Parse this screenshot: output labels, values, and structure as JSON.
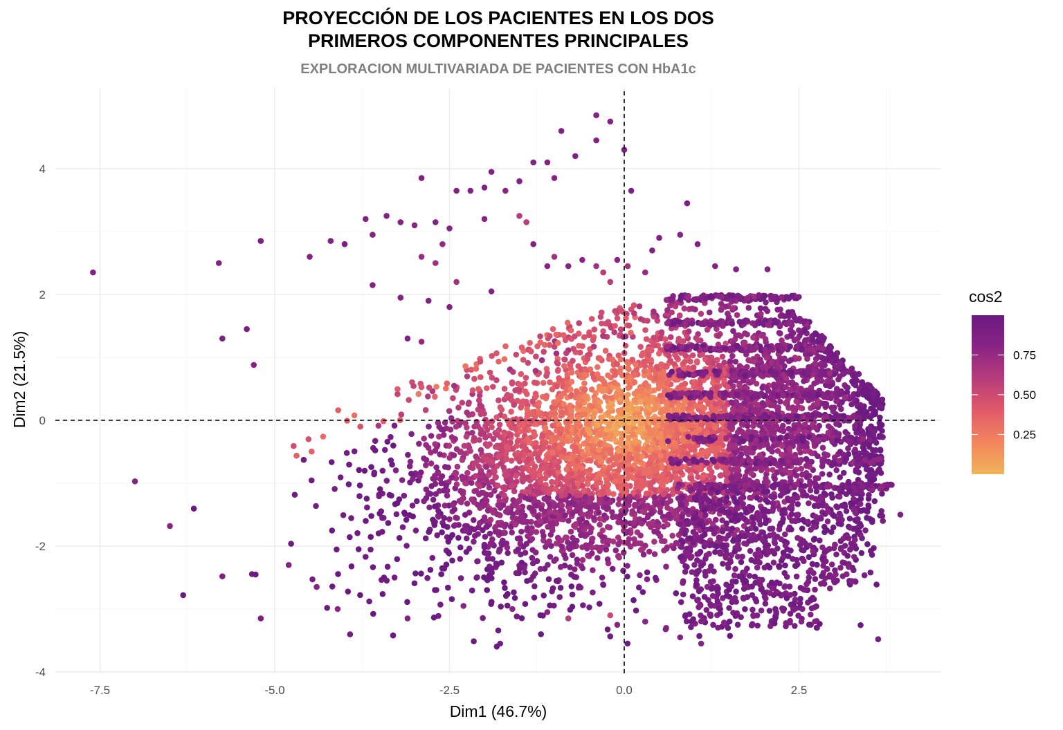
{
  "chart_data": {
    "type": "scatter",
    "title_lines": [
      "PROYECCIÓN DE LOS PACIENTES EN LOS DOS",
      "PRIMEROS COMPONENTES PRINCIPALES"
    ],
    "subtitle": "EXPLORACION MULTIVARIADA DE PACIENTES CON HbA1c",
    "xlabel": "Dim1 (46.7%)",
    "ylabel": "Dim2 (21.5%)",
    "xlim": [
      -8.1,
      4.6
    ],
    "ylim": [
      -4.0,
      5.1
    ],
    "x_ticks": [
      -7.5,
      -5.0,
      -2.5,
      0.0,
      2.5
    ],
    "x_tick_labels": [
      "-7.5",
      "-5.0",
      "-2.5",
      "0.0",
      "2.5"
    ],
    "y_ticks": [
      -4,
      -2,
      0,
      2,
      4
    ],
    "y_tick_labels": [
      "-4",
      "-2",
      "0",
      "2",
      "4"
    ],
    "reference_lines": {
      "x": 0,
      "y": 0,
      "style": "dashed"
    },
    "grid": true,
    "legend": {
      "title": "cos2",
      "placement": "right",
      "ticks": [
        0.25,
        0.5,
        0.75
      ],
      "tick_labels": [
        "0.25",
        "0.50",
        "0.75"
      ],
      "range": [
        0.0,
        1.0
      ]
    },
    "colormap": [
      "#f0b45a",
      "#f2855e",
      "#e15a69",
      "#b83c7b",
      "#8a2484",
      "#6b1a82"
    ],
    "outlier_points": [
      [
        -7.6,
        2.35,
        0.85
      ],
      [
        -5.8,
        2.5,
        0.85
      ],
      [
        -5.2,
        2.85,
        0.9
      ],
      [
        -5.75,
        1.3,
        0.9
      ],
      [
        -5.4,
        1.45,
        0.9
      ],
      [
        -5.3,
        0.88,
        0.85
      ],
      [
        -7.0,
        -0.97,
        0.8
      ],
      [
        -6.5,
        -1.68,
        0.8
      ],
      [
        -5.75,
        -2.48,
        0.9
      ],
      [
        -5.2,
        -3.15,
        0.9
      ],
      [
        -4.8,
        -2.3,
        0.85
      ],
      [
        -4.4,
        -2.65,
        0.8
      ],
      [
        -4.1,
        -3.0,
        0.8
      ],
      [
        -3.1,
        -3.15,
        0.85
      ],
      [
        -4.5,
        2.6,
        0.85
      ],
      [
        -4.2,
        2.85,
        0.85
      ],
      [
        -4.0,
        2.8,
        0.9
      ],
      [
        -3.7,
        3.2,
        0.85
      ],
      [
        -3.4,
        3.25,
        0.85
      ],
      [
        -3.6,
        2.95,
        0.85
      ],
      [
        -3.0,
        3.1,
        0.8
      ],
      [
        -3.2,
        3.15,
        0.85
      ],
      [
        -2.7,
        3.15,
        0.85
      ],
      [
        -2.9,
        2.6,
        0.75
      ],
      [
        -2.6,
        2.8,
        0.75
      ],
      [
        -2.5,
        3.05,
        0.8
      ],
      [
        -2.4,
        3.65,
        0.85
      ],
      [
        -2.2,
        3.65,
        0.85
      ],
      [
        -2.0,
        3.7,
        0.85
      ],
      [
        -1.9,
        3.95,
        0.85
      ],
      [
        -1.7,
        3.65,
        0.8
      ],
      [
        -1.5,
        3.8,
        0.85
      ],
      [
        -1.3,
        4.1,
        0.85
      ],
      [
        -1.1,
        4.1,
        0.85
      ],
      [
        -1.0,
        3.85,
        0.8
      ],
      [
        -0.9,
        4.6,
        0.85
      ],
      [
        -0.7,
        4.2,
        0.85
      ],
      [
        -0.4,
        4.85,
        0.85
      ],
      [
        -0.2,
        4.75,
        0.85
      ],
      [
        -0.4,
        4.45,
        0.85
      ],
      [
        0.0,
        4.3,
        0.9
      ],
      [
        0.1,
        3.65,
        0.9
      ],
      [
        0.9,
        3.45,
        0.9
      ],
      [
        -2.9,
        3.85,
        0.85
      ],
      [
        -3.6,
        2.15,
        0.85
      ],
      [
        -3.2,
        1.95,
        0.85
      ],
      [
        -2.8,
        1.9,
        0.85
      ],
      [
        -2.5,
        1.8,
        0.85
      ],
      [
        -3.1,
        1.3,
        0.85
      ],
      [
        -2.9,
        1.25,
        0.75
      ],
      [
        -2.7,
        2.5,
        0.7
      ],
      [
        -2.4,
        2.2,
        0.7
      ],
      [
        -1.5,
        3.25,
        0.6
      ],
      [
        -1.4,
        3.15,
        0.6
      ],
      [
        -1.0,
        2.6,
        0.7
      ],
      [
        -0.8,
        2.45,
        0.85
      ],
      [
        -0.6,
        2.55,
        0.8
      ],
      [
        -0.4,
        2.45,
        0.7
      ],
      [
        -0.3,
        2.35,
        0.6
      ],
      [
        -0.1,
        2.55,
        0.8
      ],
      [
        0.05,
        2.45,
        0.7
      ],
      [
        0.3,
        2.35,
        0.75
      ],
      [
        0.5,
        2.9,
        0.85
      ],
      [
        0.8,
        2.95,
        0.85
      ],
      [
        1.05,
        2.8,
        0.85
      ],
      [
        0.4,
        2.7,
        0.85
      ],
      [
        1.3,
        2.45,
        0.85
      ],
      [
        1.6,
        2.4,
        0.85
      ],
      [
        2.05,
        2.4,
        0.85
      ],
      [
        -1.1,
        2.45,
        0.8
      ],
      [
        -0.2,
        2.2,
        0.6
      ],
      [
        -1.3,
        2.8,
        0.85
      ],
      [
        -1.9,
        2.05,
        0.85
      ],
      [
        -2.0,
        3.2,
        0.8
      ],
      [
        3.95,
        -1.5,
        0.9
      ],
      [
        3.7,
        -1.6,
        0.9
      ],
      [
        3.45,
        -1.75,
        0.9
      ],
      [
        3.3,
        -1.9,
        0.85
      ],
      [
        3.1,
        -2.05,
        0.85
      ],
      [
        1.1,
        -3.55,
        0.85
      ],
      [
        0.8,
        -3.45,
        0.85
      ],
      [
        0.6,
        -3.3,
        0.85
      ],
      [
        0.3,
        -3.2,
        0.8
      ],
      [
        -0.1,
        -3.25,
        0.8
      ],
      [
        -0.2,
        -3.1,
        0.5
      ],
      [
        -0.8,
        -3.15,
        0.6
      ],
      [
        -1.1,
        -3.05,
        0.8
      ],
      [
        -1.6,
        -3.0,
        0.8
      ],
      [
        -2.3,
        -2.95,
        0.8
      ]
    ]
  }
}
